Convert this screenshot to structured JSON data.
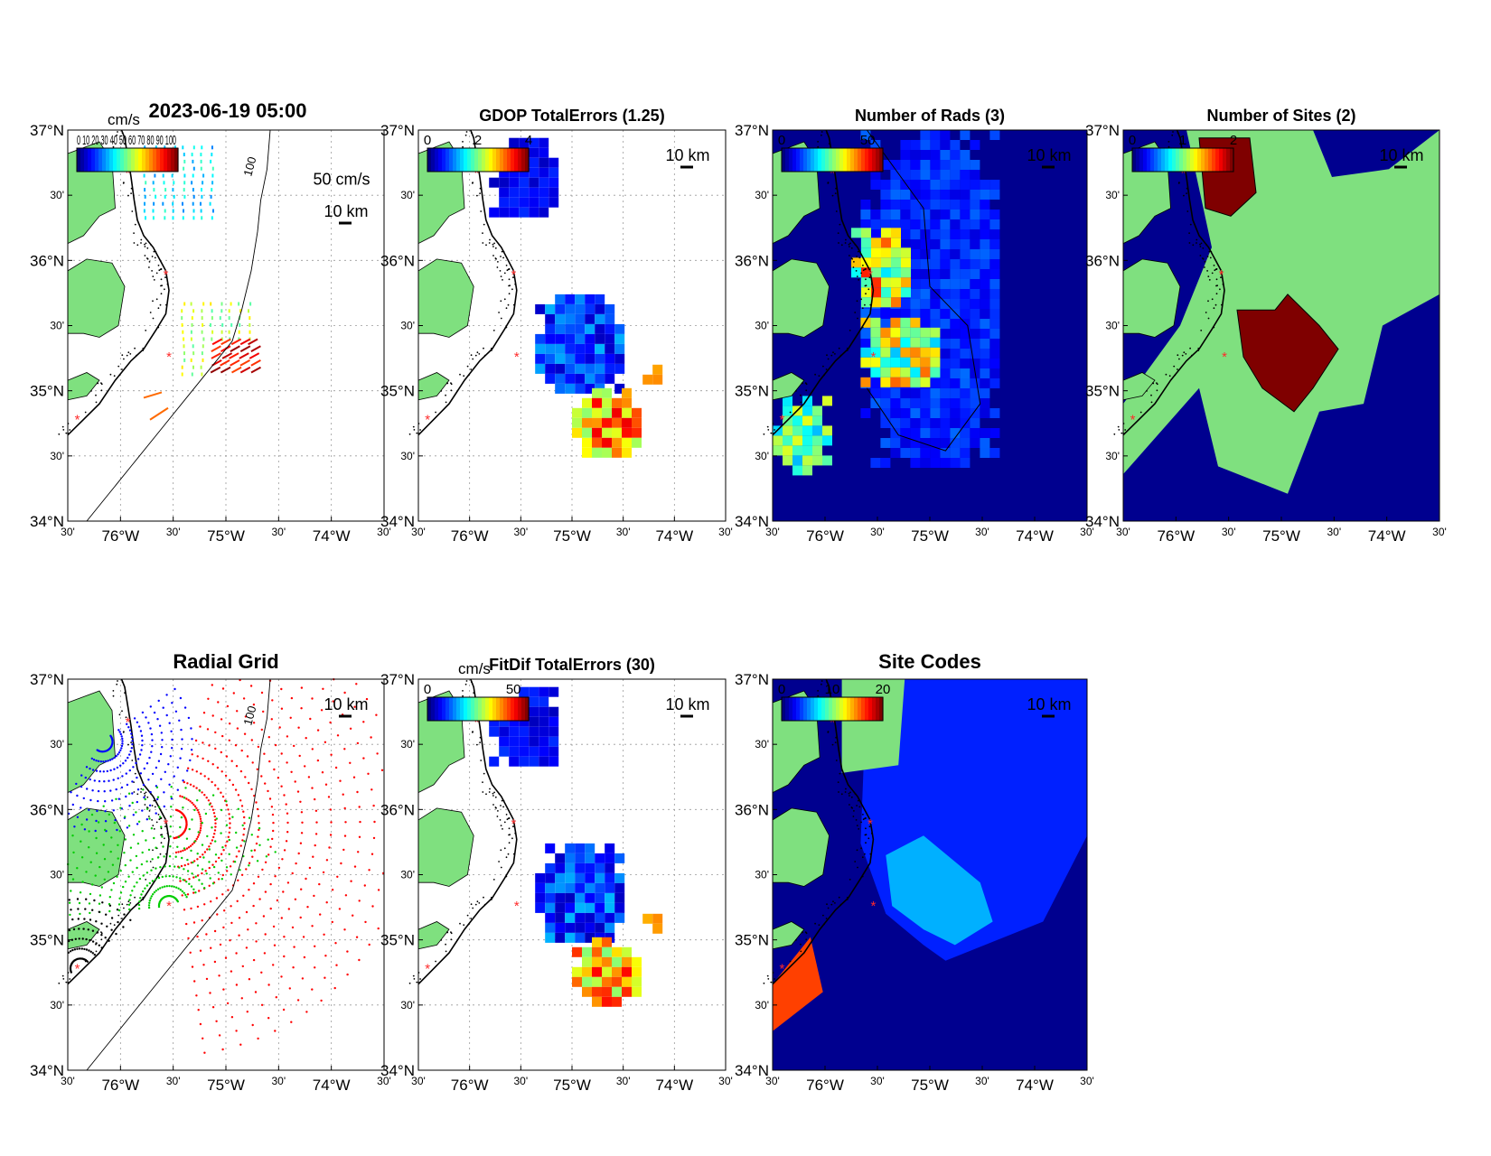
{
  "figure": {
    "main_title": "2023-06-19 05:00",
    "colors": {
      "land": "#7fe07f",
      "coast": "#000000",
      "site_marker": "#ff2a2a",
      "grid": "#9a9a9a",
      "ocean_bg": "#ffffff",
      "deep_blue": "#00008f",
      "dark_red": "#7f0000"
    },
    "colormap": "jet"
  },
  "axis_labels": {
    "lat": [
      "37°N",
      "30'",
      "36°N",
      "30'",
      "35°N",
      "30'",
      "34°N"
    ],
    "lon": [
      "30'",
      "76°W",
      "30'",
      "75°W",
      "30'",
      "74°W",
      "30'"
    ]
  },
  "panels": [
    {
      "id": "vectors",
      "title": "",
      "colorbar": {
        "unit": "cm/s",
        "ticks": [],
        "overlapped_tick_text": "0 10 20 30 40 50 60 70 80 90 100"
      },
      "reference_vector": "50 cm/s",
      "scale_bar": "10 km",
      "isobath_label": "100",
      "map_layer": {
        "type": "current-vectors",
        "icon": "arrow-icon"
      }
    },
    {
      "id": "gdop",
      "title": "GDOP TotalErrors (1.25)",
      "colorbar": {
        "unit": "",
        "ticks": [
          "0",
          "2",
          "4"
        ]
      },
      "scale_bar": "10 km",
      "map_layer": {
        "type": "error-field"
      }
    },
    {
      "id": "nrads",
      "title": "Number of Rads (3)",
      "colorbar": {
        "unit": "",
        "ticks": [
          "0",
          "50"
        ]
      },
      "scale_bar": "10 km",
      "map_layer": {
        "type": "count-field"
      }
    },
    {
      "id": "nsites",
      "title": "Number of Sites (2)",
      "colorbar": {
        "unit": "",
        "ticks": [
          "0",
          "1",
          "2"
        ]
      },
      "scale_bar": "10 km",
      "map_layer": {
        "type": "site-count-field"
      }
    },
    {
      "id": "radgrid",
      "title": "Radial Grid",
      "scale_bar": "10 km",
      "isobath_label": "100",
      "map_layer": {
        "type": "radial-grid",
        "site_colors": [
          "#0000ff",
          "#ff0000",
          "#00cc00",
          "#000000"
        ]
      }
    },
    {
      "id": "fitdif",
      "title": "FitDif TotalErrors (30)",
      "colorbar": {
        "unit": "cm/s",
        "ticks": [
          "0",
          "50"
        ]
      },
      "scale_bar": "10 km",
      "map_layer": {
        "type": "error-field"
      }
    },
    {
      "id": "sitecodes",
      "title": "Site Codes",
      "colorbar": {
        "unit": "",
        "ticks": [
          "0",
          "10",
          "20"
        ]
      },
      "scale_bar": "10 km",
      "map_layer": {
        "type": "site-code-field"
      }
    }
  ]
}
